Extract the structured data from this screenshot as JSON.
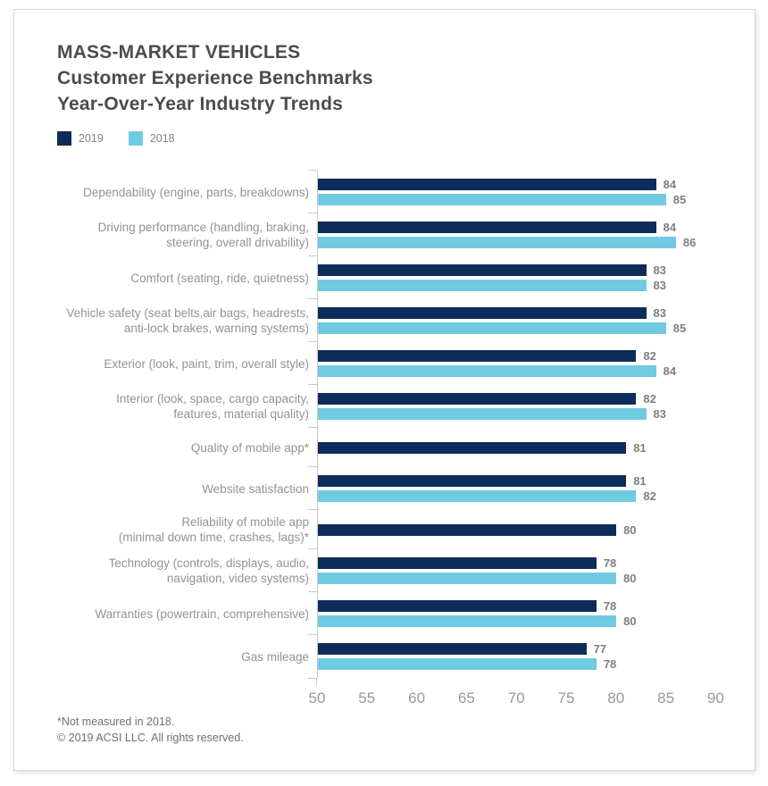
{
  "header": {
    "title_lines": [
      "MASS-MARKET VEHICLES",
      "Customer Experience Benchmarks",
      "Year-Over-Year Industry Trends"
    ]
  },
  "legend": {
    "items": [
      {
        "label": "2019",
        "color": "#0e2c59"
      },
      {
        "label": "2018",
        "color": "#70cbe2"
      }
    ]
  },
  "chart_data": {
    "type": "bar",
    "orientation": "horizontal",
    "title": "MASS-MARKET VEHICLES — Customer Experience Benchmarks — Year-Over-Year Industry Trends",
    "categories": [
      "Dependability (engine, parts, breakdowns)",
      "Driving performance (handling, braking, steering, overall drivability)",
      "Comfort (seating, ride, quietness)",
      "Vehicle safety (seat belts,air bags, headrests, anti-lock brakes, warning systems)",
      "Exterior (look, paint, trim, overall style)",
      "Interior (look, space, cargo capacity, features, material quality)",
      "Quality of mobile app*",
      "Website satisfaction",
      "Reliability of mobile app (minimal down time, crashes, lags)*",
      "Technology (controls, displays, audio, navigation, video systems)",
      "Warranties (powertrain, comprehensive)",
      "Gas mileage"
    ],
    "category_label_lines": [
      [
        "Dependability (engine, parts, breakdowns)"
      ],
      [
        "Driving performance (handling, braking,",
        "steering, overall drivability)"
      ],
      [
        "Comfort (seating, ride, quietness)"
      ],
      [
        "Vehicle safety (seat belts,air bags, headrests,",
        "anti-lock brakes, warning systems)"
      ],
      [
        "Exterior (look, paint, trim, overall style)"
      ],
      [
        "Interior (look, space, cargo capacity,",
        "features, material quality)"
      ],
      [
        "Quality of mobile app*"
      ],
      [
        "Website satisfaction"
      ],
      [
        "Reliability of mobile app",
        "(minimal down time, crashes, lags)*"
      ],
      [
        "Technology (controls, displays, audio,",
        "navigation, video systems)"
      ],
      [
        "Warranties (powertrain, comprehensive)"
      ],
      [
        "Gas mileage"
      ]
    ],
    "series": [
      {
        "name": "2019",
        "color": "#0e2c59",
        "values": [
          84,
          84,
          83,
          83,
          82,
          82,
          81,
          81,
          80,
          78,
          78,
          77
        ]
      },
      {
        "name": "2018",
        "color": "#70cbe2",
        "values": [
          85,
          86,
          83,
          85,
          84,
          83,
          null,
          82,
          null,
          80,
          80,
          78
        ]
      }
    ],
    "xlim": [
      50,
      94
    ],
    "xticks": [
      50,
      55,
      60,
      65,
      70,
      75,
      80,
      85,
      90
    ],
    "grid": false,
    "value_labels": true,
    "legend_position": "top-left"
  },
  "footnotes": [
    "*Not measured in 2018.",
    "© 2019 ACSI LLC. All rights reserved."
  ]
}
